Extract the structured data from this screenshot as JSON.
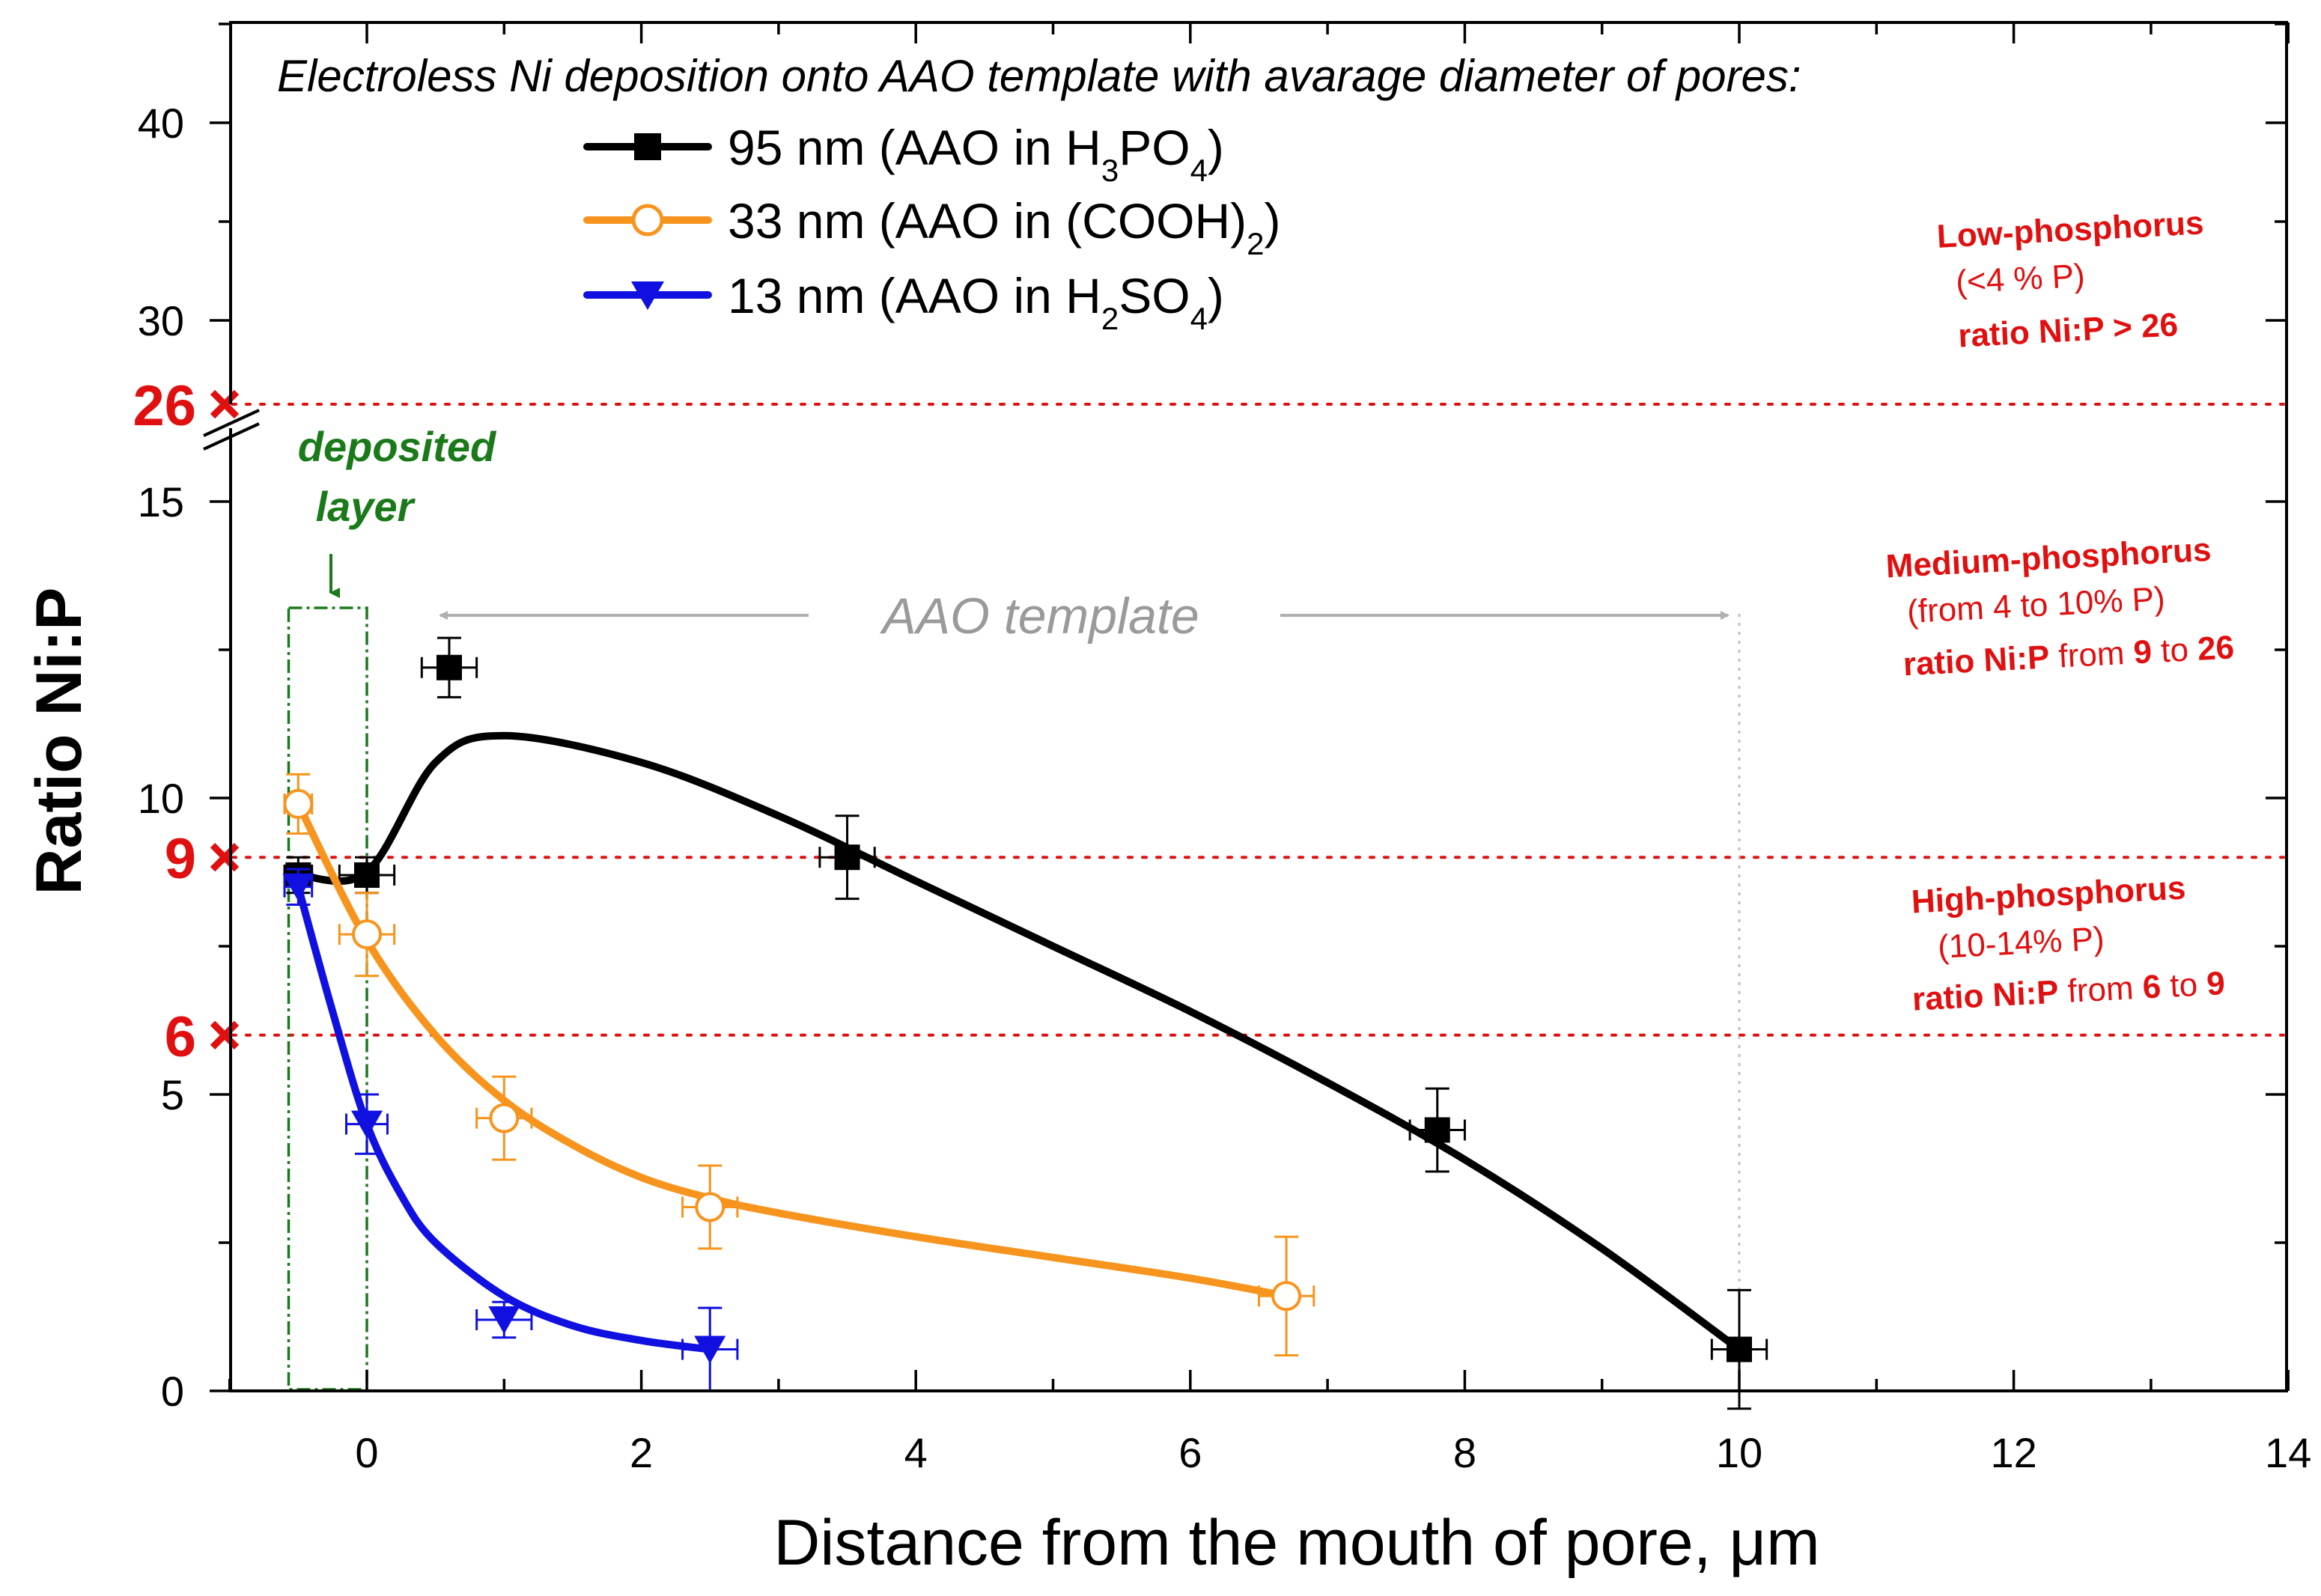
{
  "chart_data": {
    "type": "scatter",
    "title": "Electroless Ni deposition onto AAO template with avarage diameter of pores:",
    "xlabel": "Distance from the mouth of pore, μm",
    "ylabel": "Ratio Ni:P",
    "xlim": [
      -1.2,
      14
    ],
    "x_ticks": [
      0,
      2,
      4,
      6,
      8,
      10,
      12,
      14
    ],
    "y_lower_ticks": [
      0,
      5,
      10,
      15
    ],
    "y_upper_ticks": [
      30,
      40
    ],
    "y_break_between": [
      15,
      26
    ],
    "series": [
      {
        "name": "95 nm (AAO in H3PO4)",
        "legend_main": "95 nm (AAO in H",
        "legend_parts": [
          "95 nm (AAO in H",
          "3",
          "PO",
          "4",
          ")"
        ],
        "color": "#000000",
        "marker": "filled-square",
        "x": [
          -0.5,
          0,
          0.6,
          3.5,
          7.8,
          10
        ],
        "y": [
          8.7,
          8.7,
          12.2,
          9.0,
          4.4,
          0.7
        ],
        "xerr": [
          0.1,
          0.2,
          0.2,
          0.2,
          0.2,
          0.2
        ],
        "yerr": [
          0.3,
          0.3,
          0.5,
          0.7,
          0.7,
          1.0
        ],
        "curve_x": [
          -0.5,
          0,
          0.5,
          1,
          2,
          3,
          4,
          5,
          6,
          7,
          8,
          9,
          10
        ],
        "curve_y": [
          8.7,
          8.75,
          10.6,
          11.05,
          10.6,
          9.7,
          8.6,
          7.5,
          6.4,
          5.2,
          3.9,
          2.4,
          0.7
        ]
      },
      {
        "name": "33 nm (AAO in (COOH)2)",
        "legend_parts": [
          "33 nm (AAO in (COOH)",
          "2",
          ")"
        ],
        "color": "#f7941d",
        "marker": "open-circle",
        "x": [
          -0.5,
          0,
          1,
          2.5,
          6.7
        ],
        "y": [
          9.9,
          7.7,
          4.6,
          3.1,
          1.6
        ],
        "xerr": [
          0.1,
          0.2,
          0.2,
          0.2,
          0.2
        ],
        "yerr": [
          0.5,
          0.7,
          0.7,
          0.7,
          1.0
        ],
        "curve_x": [
          -0.5,
          0,
          0.5,
          1,
          1.5,
          2,
          2.5,
          3,
          4,
          5,
          6,
          6.7
        ],
        "curve_y": [
          9.9,
          7.6,
          6.0,
          4.9,
          4.15,
          3.6,
          3.25,
          3.0,
          2.6,
          2.25,
          1.9,
          1.6
        ]
      },
      {
        "name": "13 nm (AAO in H2SO4)",
        "legend_parts": [
          "13 nm (AAO in H",
          "2",
          "SO",
          "4",
          ")"
        ],
        "color": "#1010e0",
        "marker": "filled-triangle-down",
        "x": [
          -0.5,
          0,
          1,
          2.5
        ],
        "y": [
          8.5,
          4.5,
          1.2,
          0.7
        ],
        "xerr": [
          0.1,
          0.15,
          0.2,
          0.2
        ],
        "yerr": [
          0.3,
          0.5,
          0.3,
          0.7
        ],
        "curve_x": [
          -0.5,
          -0.25,
          0,
          0.25,
          0.5,
          1,
          1.5,
          2,
          2.5
        ],
        "curve_y": [
          8.5,
          6.4,
          4.5,
          3.3,
          2.5,
          1.6,
          1.1,
          0.85,
          0.7
        ]
      }
    ],
    "reference_lines": [
      {
        "value": 26,
        "label": "26",
        "marker": "x"
      },
      {
        "value": 9,
        "label": "9",
        "marker": "x"
      },
      {
        "value": 6,
        "label": "6",
        "marker": "x"
      }
    ],
    "zones": [
      {
        "title": "Low-phosphorus",
        "range": "(<4 % P)",
        "ratio_prefix": "ratio Ni:P > 26",
        "ratio_mid": "",
        "ratio_a": "",
        "ratio_to": "",
        "ratio_b": ""
      },
      {
        "title": "Medium-phosphorus",
        "range": "(from 4 to 10% P)",
        "ratio_prefix": "ratio Ni:P",
        "ratio_mid": " from ",
        "ratio_a": "9",
        "ratio_to": " to ",
        "ratio_b": "26"
      },
      {
        "title": "High-phosphorus",
        "range": "(10-14% P)",
        "ratio_prefix": "ratio Ni:P",
        "ratio_mid": " from ",
        "ratio_a": "6",
        "ratio_to": " to ",
        "ratio_b": "9"
      }
    ],
    "annotations": {
      "deposited_layer_1": "deposited",
      "deposited_layer_2": "layer",
      "aao_template": "AAO template"
    }
  },
  "colors": {
    "red": "#e01010",
    "green": "#1a7a1a",
    "gray": "#9a9a9a"
  }
}
